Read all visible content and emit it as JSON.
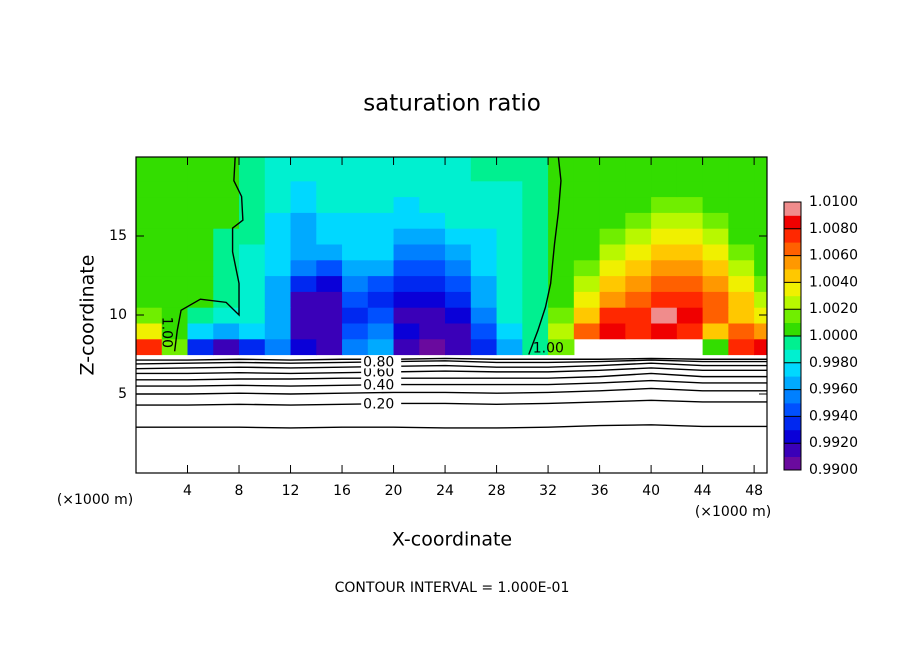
{
  "chart_data": {
    "type": "contour",
    "title": "saturation ratio",
    "xlabel": "X-coordinate",
    "ylabel": "Z-coordinate",
    "xunit": "(×1000 m)",
    "yunit": "(×1000 m)",
    "footnote": "CONTOUR INTERVAL = 1.000E-01",
    "xlim": [
      0,
      49
    ],
    "ylim": [
      0,
      20
    ],
    "xticks": [
      4,
      8,
      12,
      16,
      20,
      24,
      28,
      32,
      36,
      40,
      44,
      48
    ],
    "yticks": [
      5,
      10,
      15
    ],
    "clim": [
      0.99,
      1.01
    ],
    "cticks": [
      {
        "value": 0.99,
        "label": "0.9900"
      },
      {
        "value": 0.992,
        "label": "0.9920"
      },
      {
        "value": 0.994,
        "label": "0.9940"
      },
      {
        "value": 0.996,
        "label": "0.9960"
      },
      {
        "value": 0.998,
        "label": "0.9980"
      },
      {
        "value": 1.0,
        "label": "1.0000"
      },
      {
        "value": 1.002,
        "label": "1.0020"
      },
      {
        "value": 1.004,
        "label": "1.0040"
      },
      {
        "value": 1.006,
        "label": "1.0060"
      },
      {
        "value": 1.008,
        "label": "1.0080"
      },
      {
        "value": 1.01,
        "label": "1.0100"
      }
    ],
    "colors": [
      "#6a0a9e",
      "#3a00b8",
      "#0a00d8",
      "#0028f0",
      "#0050ff",
      "#0080ff",
      "#00aaff",
      "#00d8ff",
      "#00f0d0",
      "#00f090",
      "#33dd00",
      "#70ee00",
      "#b8f800",
      "#f0f000",
      "#ffc800",
      "#ff9800",
      "#ff6000",
      "#ff2800",
      "#f00000",
      "#f08c8c"
    ],
    "x": [
      1,
      3,
      5,
      7,
      9,
      11,
      13,
      15,
      17,
      19,
      21,
      23,
      25,
      27,
      29,
      31,
      33,
      35,
      37,
      39,
      41,
      43,
      45,
      47,
      49
    ],
    "z": [
      8,
      9,
      10,
      11,
      12,
      13,
      14,
      15,
      16,
      17,
      18,
      19,
      20
    ],
    "values": [
      [
        1.0075,
        1.0015,
        0.9935,
        0.9915,
        0.9935,
        0.9955,
        0.9925,
        0.9915,
        0.9955,
        0.9965,
        0.9915,
        0.9905,
        0.9915,
        0.9935,
        0.9965,
        0.9995,
        1.0015,
        null,
        null,
        null,
        null,
        null,
        1.0005,
        1.0075,
        1.0085
      ],
      [
        1.0035,
        1.0005,
        0.9975,
        0.9965,
        0.9975,
        0.9965,
        0.9915,
        0.9915,
        0.9945,
        0.9955,
        0.9925,
        0.9915,
        0.9915,
        0.9945,
        0.9975,
        0.9995,
        1.0025,
        1.0065,
        1.0085,
        1.0075,
        1.0085,
        1.0075,
        1.0045,
        1.0065,
        1.0055
      ],
      [
        1.0015,
        1.0005,
        0.9995,
        0.9985,
        0.9985,
        0.9965,
        0.9915,
        0.9915,
        0.9935,
        0.9945,
        0.9915,
        0.9915,
        0.9925,
        0.9955,
        0.9985,
        0.9995,
        1.0015,
        1.0045,
        1.0075,
        1.0075,
        1.0095,
        1.0085,
        1.0065,
        1.0045,
        1.0035
      ],
      [
        1.0005,
        1.0005,
        1.0005,
        0.9995,
        0.9985,
        0.9965,
        0.9915,
        0.9915,
        0.9945,
        0.9935,
        0.9925,
        0.9925,
        0.9935,
        0.9965,
        0.9985,
        0.9995,
        1.0005,
        1.0035,
        1.0055,
        1.0065,
        1.0075,
        1.0075,
        1.0065,
        1.0045,
        1.0025
      ],
      [
        1.0005,
        1.0005,
        1.0005,
        0.9995,
        0.9985,
        0.9965,
        0.9935,
        0.9925,
        0.9955,
        0.9945,
        0.9935,
        0.9935,
        0.9945,
        0.9965,
        0.9985,
        0.9995,
        1.0005,
        1.0025,
        1.0045,
        1.0055,
        1.0065,
        1.0065,
        1.0055,
        1.0035,
        1.0015
      ],
      [
        1.0005,
        1.0005,
        1.0005,
        0.9995,
        0.9985,
        0.9975,
        0.9955,
        0.9945,
        0.9965,
        0.9965,
        0.9945,
        0.9945,
        0.9955,
        0.9975,
        0.9985,
        0.9995,
        1.0005,
        1.0015,
        1.0035,
        1.0045,
        1.0055,
        1.0055,
        1.0045,
        1.0025,
        1.0005
      ],
      [
        1.0005,
        1.0005,
        1.0005,
        0.9995,
        0.9985,
        0.9975,
        0.9965,
        0.9965,
        0.9975,
        0.9975,
        0.9955,
        0.9955,
        0.9965,
        0.9975,
        0.9985,
        0.9995,
        1.0005,
        1.0005,
        1.0025,
        1.0035,
        1.0045,
        1.0045,
        1.0035,
        1.0015,
        1.0005
      ],
      [
        1.0005,
        1.0005,
        1.0005,
        0.9995,
        0.9995,
        0.9975,
        0.9965,
        0.9975,
        0.9975,
        0.9975,
        0.9965,
        0.9965,
        0.9975,
        0.9975,
        0.9985,
        0.9995,
        1.0005,
        1.0005,
        1.0015,
        1.0025,
        1.0035,
        1.0035,
        1.0025,
        1.0005,
        1.0005
      ],
      [
        1.0005,
        1.0005,
        1.0005,
        1.0005,
        0.9995,
        0.9975,
        0.9965,
        0.9975,
        0.9975,
        0.9975,
        0.9975,
        0.9975,
        0.9985,
        0.9985,
        0.9985,
        0.9995,
        1.0005,
        1.0005,
        1.0005,
        1.0015,
        1.0025,
        1.0025,
        1.0015,
        1.0005,
        1.0005
      ],
      [
        1.0005,
        1.0005,
        1.0005,
        1.0005,
        0.9995,
        0.9985,
        0.9975,
        0.9985,
        0.9985,
        0.9985,
        0.9975,
        0.9985,
        0.9985,
        0.9985,
        0.9985,
        0.9995,
        1.0005,
        1.0005,
        1.0005,
        1.0005,
        1.0015,
        1.0015,
        1.0005,
        1.0005,
        1.0005
      ],
      [
        1.0005,
        1.0005,
        1.0005,
        1.0005,
        0.9995,
        0.9985,
        0.9975,
        0.9985,
        0.9985,
        0.9985,
        0.9985,
        0.9985,
        0.9985,
        0.9985,
        0.9985,
        0.9995,
        1.0005,
        1.0005,
        1.0005,
        1.0005,
        1.0005,
        1.0005,
        1.0005,
        1.0005,
        1.0005
      ],
      [
        1.0005,
        1.0005,
        1.0005,
        1.0005,
        0.9995,
        0.9985,
        0.9985,
        0.9985,
        0.9985,
        0.9985,
        0.9985,
        0.9985,
        0.9985,
        0.9995,
        0.9995,
        0.9995,
        1.0005,
        1.0005,
        1.0005,
        1.0005,
        1.0005,
        1.0005,
        1.0005,
        1.0005,
        1.0005
      ],
      [
        1.0005,
        1.0005,
        1.0005,
        1.0005,
        0.9995,
        0.9985,
        0.9985,
        0.9985,
        0.9985,
        0.9985,
        0.9985,
        0.9985,
        0.9985,
        0.9995,
        0.9995,
        0.9995,
        1.0005,
        1.0005,
        1.0005,
        1.0005,
        1.0005,
        1.0005,
        1.0005,
        1.0005,
        1.0005
      ]
    ],
    "contours": [
      {
        "level": 0.1,
        "x": [
          0,
          4,
          8,
          12,
          16,
          20,
          24,
          28,
          32,
          36,
          40,
          44,
          49
        ],
        "z": [
          2.9,
          2.9,
          2.9,
          2.85,
          2.9,
          2.9,
          2.85,
          2.85,
          2.9,
          3.0,
          3.05,
          2.95,
          2.95
        ]
      },
      {
        "level": 0.2,
        "label": "0.20",
        "x": [
          0,
          4,
          8,
          12,
          16,
          20,
          24,
          28,
          32,
          36,
          40,
          44,
          49
        ],
        "z": [
          4.3,
          4.3,
          4.35,
          4.3,
          4.35,
          4.4,
          4.4,
          4.35,
          4.4,
          4.5,
          4.6,
          4.5,
          4.5
        ]
      },
      {
        "level": 0.3,
        "x": [
          0,
          4,
          8,
          12,
          16,
          20,
          24,
          28,
          32,
          36,
          40,
          44,
          49
        ],
        "z": [
          5.0,
          5.0,
          5.05,
          5.0,
          5.05,
          5.1,
          5.1,
          5.05,
          5.1,
          5.2,
          5.35,
          5.2,
          5.2
        ]
      },
      {
        "level": 0.4,
        "label": "0.40",
        "x": [
          0,
          4,
          8,
          12,
          16,
          20,
          24,
          28,
          32,
          36,
          40,
          44,
          49
        ],
        "z": [
          5.5,
          5.5,
          5.55,
          5.5,
          5.55,
          5.6,
          5.6,
          5.6,
          5.6,
          5.7,
          5.85,
          5.7,
          5.7
        ]
      },
      {
        "level": 0.5,
        "x": [
          0,
          4,
          8,
          12,
          16,
          20,
          24,
          28,
          32,
          36,
          40,
          44,
          49
        ],
        "z": [
          5.9,
          5.9,
          5.95,
          5.95,
          6.0,
          6.0,
          6.0,
          6.0,
          6.0,
          6.1,
          6.3,
          6.1,
          6.1
        ]
      },
      {
        "level": 0.6,
        "label": "0.60",
        "x": [
          0,
          4,
          8,
          12,
          16,
          20,
          24,
          28,
          32,
          36,
          40,
          44,
          49
        ],
        "z": [
          6.3,
          6.3,
          6.35,
          6.3,
          6.35,
          6.4,
          6.45,
          6.4,
          6.4,
          6.5,
          6.65,
          6.5,
          6.5
        ]
      },
      {
        "level": 0.7,
        "x": [
          0,
          4,
          8,
          12,
          16,
          20,
          24,
          28,
          32,
          36,
          40,
          44,
          49
        ],
        "z": [
          6.6,
          6.65,
          6.7,
          6.65,
          6.7,
          6.75,
          6.8,
          6.7,
          6.7,
          6.8,
          6.95,
          6.8,
          6.8
        ]
      },
      {
        "level": 0.8,
        "label": "0.80",
        "x": [
          0,
          4,
          8,
          12,
          16,
          20,
          24,
          28,
          32,
          36,
          40,
          44,
          49
        ],
        "z": [
          6.9,
          6.95,
          7.0,
          6.95,
          7.0,
          7.05,
          7.1,
          7.0,
          7.0,
          7.05,
          7.15,
          7.05,
          7.05
        ]
      },
      {
        "level": 0.9,
        "x": [
          0,
          4,
          8,
          12,
          16,
          20,
          24,
          28,
          32,
          36,
          40,
          44,
          49
        ],
        "z": [
          7.15,
          7.15,
          7.2,
          7.15,
          7.2,
          7.2,
          7.25,
          7.2,
          7.2,
          7.2,
          7.25,
          7.2,
          7.2
        ]
      },
      {
        "level": 1,
        "label": "1.00",
        "x": [
          3.0,
          3.2,
          3.5,
          5,
          7,
          8,
          8.0,
          7.5,
          7.5,
          8.3,
          8.2,
          7.6,
          7.7
        ],
        "z": [
          7.7,
          9,
          10.3,
          11,
          10.8,
          10,
          12,
          14,
          15.5,
          16,
          17.5,
          18.5,
          20
        ]
      },
      {
        "level": 1,
        "label": "1.00",
        "x": [
          30.5,
          31.2,
          31.8,
          32.2,
          32.5,
          32.8,
          33.0,
          32.8
        ],
        "z": [
          7.5,
          9,
          10.5,
          12,
          14.5,
          16.5,
          18.5,
          20
        ]
      }
    ]
  }
}
